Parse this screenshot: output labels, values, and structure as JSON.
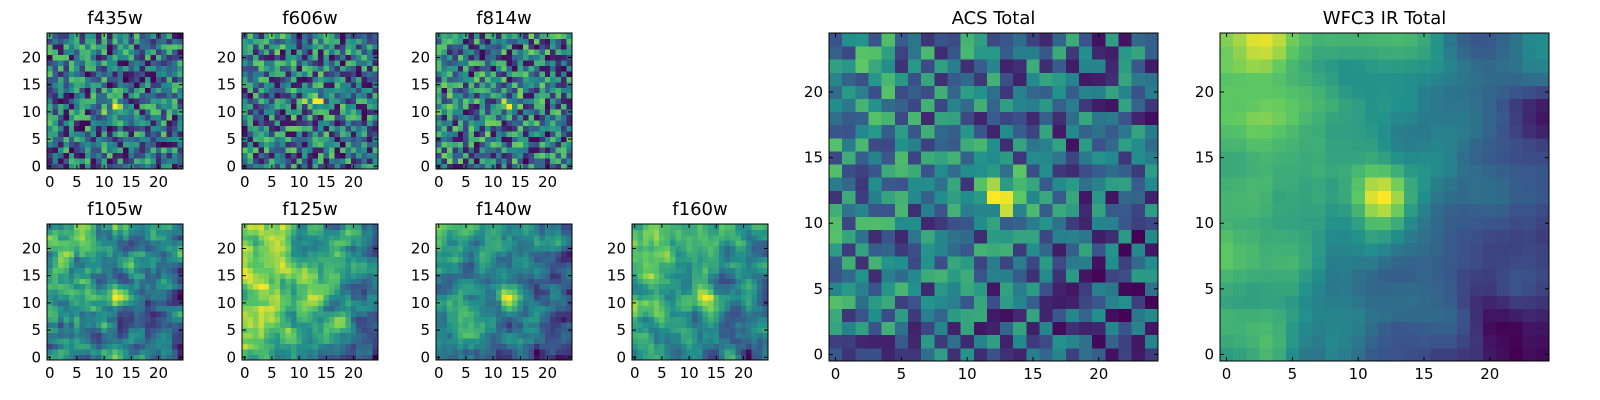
{
  "figure": {
    "colormap": "viridis",
    "colors": [
      "#440154",
      "#3b528b",
      "#21918c",
      "#5ec962",
      "#fde725"
    ]
  },
  "chart_data": [
    {
      "type": "heatmap",
      "title": "f435w",
      "grid_size": 25,
      "xlim": [
        -0.5,
        24.5
      ],
      "ylim": [
        -0.5,
        24.5
      ],
      "xticks": [
        0,
        5,
        10,
        15,
        20
      ],
      "yticks": [
        0,
        5,
        10,
        15,
        20
      ],
      "seed": 11,
      "noise": 0.85,
      "smoothing": 0,
      "gradient": 0.0,
      "peak": {
        "x": 12,
        "y": 11,
        "strength": 0.35
      }
    },
    {
      "type": "heatmap",
      "title": "f606w",
      "grid_size": 25,
      "xlim": [
        -0.5,
        24.5
      ],
      "ylim": [
        -0.5,
        24.5
      ],
      "xticks": [
        0,
        5,
        10,
        15,
        20
      ],
      "yticks": [
        0,
        5,
        10,
        15,
        20
      ],
      "seed": 23,
      "noise": 0.85,
      "smoothing": 0,
      "gradient": 0.05,
      "peak": {
        "x": 13,
        "y": 12,
        "strength": 0.45
      }
    },
    {
      "type": "heatmap",
      "title": "f814w",
      "grid_size": 25,
      "xlim": [
        -0.5,
        24.5
      ],
      "ylim": [
        -0.5,
        24.5
      ],
      "xticks": [
        0,
        5,
        10,
        15,
        20
      ],
      "yticks": [
        0,
        5,
        10,
        15,
        20
      ],
      "seed": 37,
      "noise": 0.9,
      "smoothing": 0,
      "gradient": 0.05,
      "peak": {
        "x": 13,
        "y": 11,
        "strength": 0.3
      }
    },
    {
      "type": "heatmap",
      "title": "f105w",
      "grid_size": 25,
      "xlim": [
        -0.5,
        24.5
      ],
      "ylim": [
        -0.5,
        24.5
      ],
      "xticks": [
        0,
        5,
        10,
        15,
        20
      ],
      "yticks": [
        0,
        5,
        10,
        15,
        20
      ],
      "seed": 41,
      "noise": 0.6,
      "smoothing": 1,
      "gradient": 0.35,
      "peak": {
        "x": 13,
        "y": 11,
        "strength": 0.35
      }
    },
    {
      "type": "heatmap",
      "title": "f125w",
      "grid_size": 25,
      "xlim": [
        -0.5,
        24.5
      ],
      "ylim": [
        -0.5,
        24.5
      ],
      "xticks": [
        0,
        5,
        10,
        15,
        20
      ],
      "yticks": [
        0,
        5,
        10,
        15,
        20
      ],
      "seed": 53,
      "noise": 0.6,
      "smoothing": 1,
      "gradient": 0.4,
      "peak": {
        "x": 13,
        "y": 11,
        "strength": 0.3
      }
    },
    {
      "type": "heatmap",
      "title": "f140w",
      "grid_size": 25,
      "xlim": [
        -0.5,
        24.5
      ],
      "ylim": [
        -0.5,
        24.5
      ],
      "xticks": [
        0,
        5,
        10,
        15,
        20
      ],
      "yticks": [
        0,
        5,
        10,
        15,
        20
      ],
      "seed": 67,
      "noise": 0.6,
      "smoothing": 1,
      "gradient": 0.4,
      "peak": {
        "x": 13,
        "y": 11,
        "strength": 0.4
      }
    },
    {
      "type": "heatmap",
      "title": "f160w",
      "grid_size": 25,
      "xlim": [
        -0.5,
        24.5
      ],
      "ylim": [
        -0.5,
        24.5
      ],
      "xticks": [
        0,
        5,
        10,
        15,
        20
      ],
      "yticks": [
        0,
        5,
        10,
        15,
        20
      ],
      "seed": 79,
      "noise": 0.6,
      "smoothing": 1,
      "gradient": 0.45,
      "peak": {
        "x": 13,
        "y": 11,
        "strength": 0.45
      }
    },
    {
      "type": "heatmap",
      "title": "ACS Total",
      "grid_size": 25,
      "xlim": [
        -0.5,
        24.5
      ],
      "ylim": [
        -0.5,
        24.5
      ],
      "xticks": [
        0,
        5,
        10,
        15,
        20
      ],
      "yticks": [
        0,
        5,
        10,
        15,
        20
      ],
      "seed": 97,
      "noise": 0.6,
      "smoothing": 0,
      "gradient": 0.25,
      "peak": {
        "x": 13,
        "y": 12,
        "strength": 0.55
      }
    },
    {
      "type": "heatmap",
      "title": "WFC3 IR Total",
      "grid_size": 25,
      "xlim": [
        -0.5,
        24.5
      ],
      "ylim": [
        -0.5,
        24.5
      ],
      "xticks": [
        0,
        5,
        10,
        15,
        20
      ],
      "yticks": [
        0,
        5,
        10,
        15,
        20
      ],
      "seed": 113,
      "noise": 0.35,
      "smoothing": 2,
      "gradient": 0.75,
      "peak": {
        "x": 12,
        "y": 12,
        "strength": 0.5
      }
    }
  ]
}
